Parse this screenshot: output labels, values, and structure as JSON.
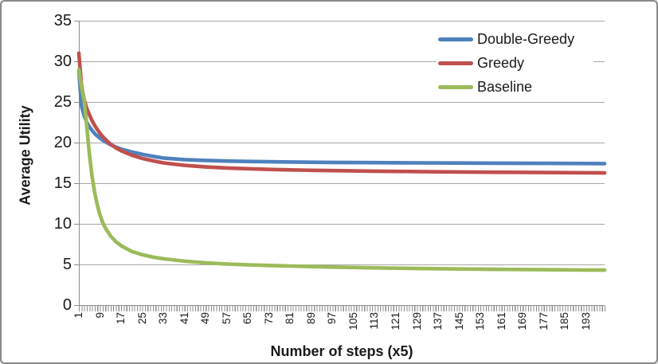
{
  "chart_data": {
    "type": "line",
    "title": "",
    "xlabel": "Number of steps (x5)",
    "ylabel": "Average Utility",
    "ylim": [
      0,
      35
    ],
    "xlim": [
      1,
      200
    ],
    "y_ticks": [
      0,
      5,
      10,
      15,
      20,
      25,
      30,
      35
    ],
    "x_tick_labels": [
      1,
      9,
      17,
      25,
      33,
      41,
      49,
      57,
      65,
      73,
      81,
      89,
      97,
      105,
      113,
      121,
      129,
      137,
      145,
      153,
      161,
      169,
      177,
      185,
      193
    ],
    "grid": "horizontal",
    "legend_position": "top-right",
    "x": [
      1,
      2,
      3,
      4,
      5,
      6,
      7,
      8,
      9,
      10,
      11,
      13,
      15,
      17,
      21,
      25,
      29,
      33,
      41,
      49,
      57,
      65,
      73,
      81,
      89,
      97,
      113,
      129,
      145,
      161,
      177,
      193,
      200
    ],
    "series": [
      {
        "name": "Double-Greedy",
        "color": "#4F81BD",
        "values": [
          28.8,
          24.5,
          23.3,
          22.5,
          21.9,
          21.5,
          21.1,
          20.8,
          20.55,
          20.3,
          20.1,
          19.75,
          19.45,
          19.2,
          18.85,
          18.55,
          18.3,
          18.1,
          17.9,
          17.8,
          17.73,
          17.68,
          17.64,
          17.61,
          17.58,
          17.56,
          17.53,
          17.5,
          17.48,
          17.46,
          17.44,
          17.42,
          17.41
        ]
      },
      {
        "name": "Greedy",
        "color": "#C0504D",
        "values": [
          31.0,
          27.0,
          25.3,
          24.2,
          23.4,
          22.7,
          22.1,
          21.6,
          21.15,
          20.75,
          20.4,
          19.8,
          19.35,
          19.0,
          18.45,
          18.05,
          17.75,
          17.5,
          17.2,
          17.0,
          16.87,
          16.78,
          16.7,
          16.64,
          16.59,
          16.55,
          16.48,
          16.43,
          16.38,
          16.34,
          16.31,
          16.28,
          16.26
        ]
      },
      {
        "name": "Baseline",
        "color": "#9BBB59",
        "values": [
          29.0,
          26.8,
          25.2,
          22.0,
          18.5,
          15.8,
          13.8,
          12.3,
          11.1,
          10.2,
          9.5,
          8.5,
          7.8,
          7.3,
          6.6,
          6.2,
          5.9,
          5.7,
          5.4,
          5.2,
          5.05,
          4.95,
          4.87,
          4.8,
          4.74,
          4.68,
          4.58,
          4.5,
          4.44,
          4.39,
          4.35,
          4.31,
          4.3
        ]
      }
    ],
    "style": {
      "gridline_color": "#A6A6A6",
      "axis_color": "#8C8C8C",
      "text_color": "#1A1A1A",
      "background": "#FFFFFF",
      "line_width": 4.6
    }
  }
}
